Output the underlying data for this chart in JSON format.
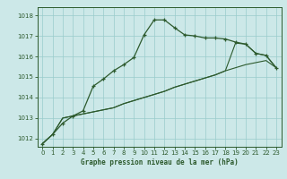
{
  "title": "Graphe pression niveau de la mer (hPa)",
  "bg_color": "#cce8e8",
  "grid_color": "#99cccc",
  "line_color": "#2d5a2d",
  "xlim": [
    -0.5,
    23.5
  ],
  "ylim": [
    1011.6,
    1018.4
  ],
  "yticks": [
    1012,
    1013,
    1014,
    1015,
    1016,
    1017,
    1018
  ],
  "xticks": [
    0,
    1,
    2,
    3,
    4,
    5,
    6,
    7,
    8,
    9,
    10,
    11,
    12,
    13,
    14,
    15,
    16,
    17,
    18,
    19,
    20,
    21,
    22,
    23
  ],
  "series1_x": [
    0,
    1,
    2,
    3,
    4,
    5,
    6,
    7,
    8,
    9,
    10,
    11,
    12,
    13,
    14,
    15,
    16,
    17,
    18,
    19,
    20,
    21,
    22,
    23
  ],
  "series1_y": [
    1011.75,
    1012.2,
    1012.75,
    1013.1,
    1013.35,
    1014.55,
    1014.9,
    1015.3,
    1015.6,
    1015.95,
    1017.05,
    1017.78,
    1017.78,
    1017.4,
    1017.05,
    1017.0,
    1016.9,
    1016.9,
    1016.85,
    1016.7,
    1016.6,
    1016.15,
    1016.05,
    1015.45
  ],
  "series2_x": [
    0,
    1,
    2,
    3,
    4,
    5,
    6,
    7,
    8,
    9,
    10,
    11,
    12,
    13,
    14,
    15,
    16,
    17,
    18,
    19,
    20,
    21,
    22,
    23
  ],
  "series2_y": [
    1011.75,
    1012.2,
    1013.0,
    1013.1,
    1013.2,
    1013.3,
    1013.4,
    1013.5,
    1013.7,
    1013.85,
    1014.0,
    1014.15,
    1014.3,
    1014.5,
    1014.65,
    1014.8,
    1014.95,
    1015.1,
    1015.3,
    1015.45,
    1015.6,
    1015.7,
    1015.8,
    1015.45
  ],
  "series3_x": [
    0,
    1,
    2,
    3,
    4,
    5,
    6,
    7,
    8,
    9,
    10,
    11,
    12,
    13,
    14,
    15,
    16,
    17,
    18,
    19,
    20,
    21,
    22,
    23
  ],
  "series3_y": [
    1011.75,
    1012.2,
    1013.0,
    1013.1,
    1013.2,
    1013.3,
    1013.4,
    1013.5,
    1013.7,
    1013.85,
    1014.0,
    1014.15,
    1014.3,
    1014.5,
    1014.65,
    1014.8,
    1014.95,
    1015.1,
    1015.3,
    1016.65,
    1016.6,
    1016.15,
    1016.05,
    1015.45
  ]
}
